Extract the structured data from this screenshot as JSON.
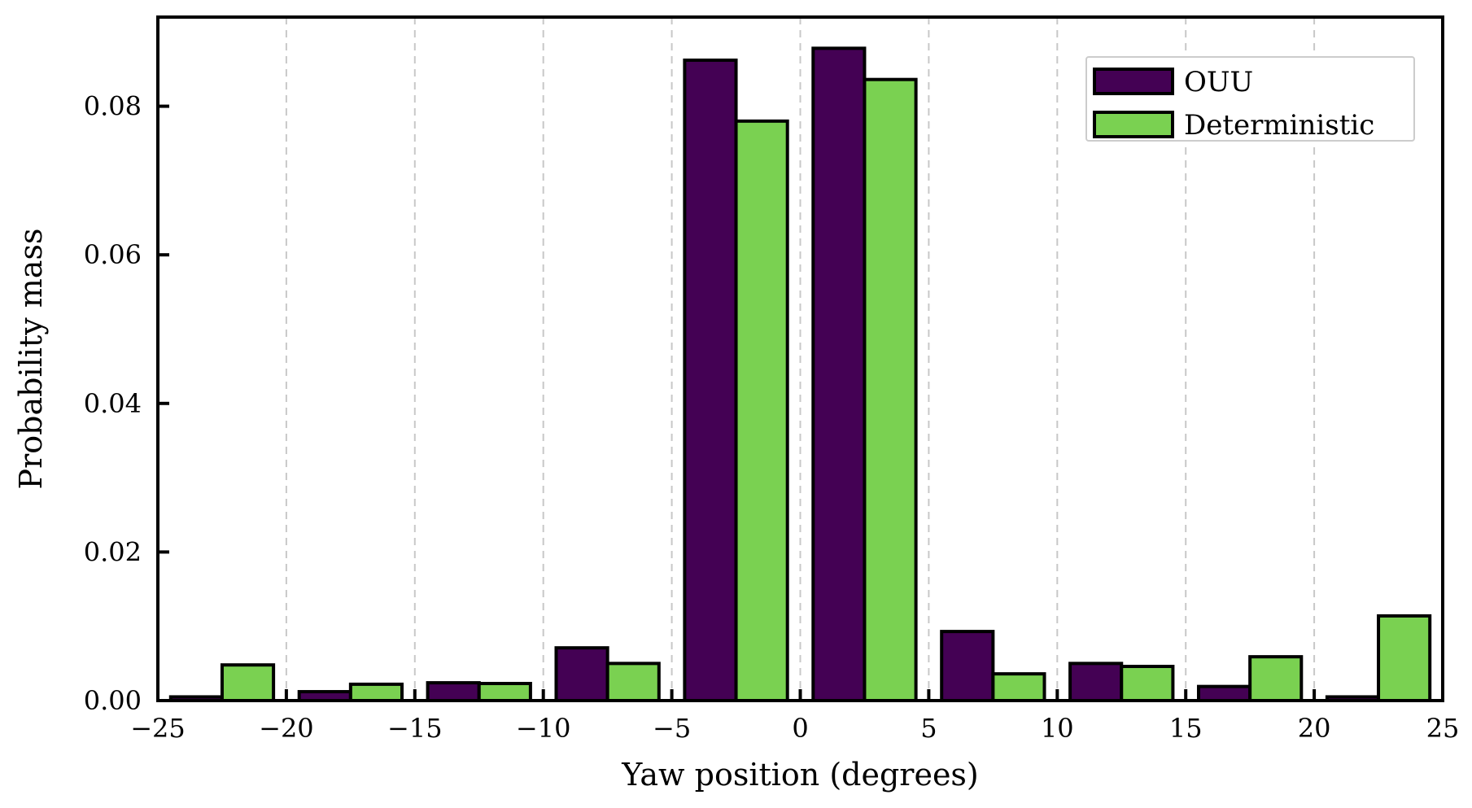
{
  "chart_data": {
    "type": "bar",
    "xlabel": "Yaw position (degrees)",
    "ylabel": "Probability mass",
    "xlim": [
      -25,
      25
    ],
    "ylim": [
      0,
      0.092
    ],
    "xticks": [
      -25,
      -20,
      -15,
      -10,
      -5,
      0,
      5,
      10,
      15,
      20,
      25
    ],
    "xtick_labels": [
      "−25",
      "−20",
      "−15",
      "−10",
      "−5",
      "0",
      "5",
      "10",
      "15",
      "20",
      "25"
    ],
    "yticks": [
      0,
      0.02,
      0.04,
      0.06,
      0.08
    ],
    "ytick_labels": [
      "0.00",
      "0.02",
      "0.04",
      "0.06",
      "0.08"
    ],
    "bin_edges": [
      -25,
      -20,
      -15,
      -10,
      -5,
      0,
      5,
      10,
      15,
      20,
      25
    ],
    "grid": "vertical dashed at bin edges",
    "legend_position": "top-right",
    "series": [
      {
        "name": "OUU",
        "color": "#440154",
        "values": [
          0.0005,
          0.0012,
          0.0024,
          0.0071,
          0.0862,
          0.0878,
          0.0093,
          0.005,
          0.0019,
          0.0005
        ]
      },
      {
        "name": "Deterministic",
        "color": "#7ad151",
        "values": [
          0.0048,
          0.0022,
          0.0023,
          0.005,
          0.078,
          0.0836,
          0.0036,
          0.0046,
          0.0059,
          0.0114
        ]
      }
    ]
  }
}
